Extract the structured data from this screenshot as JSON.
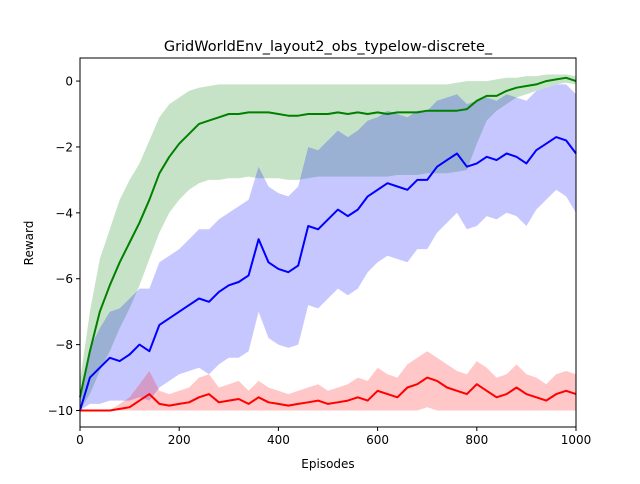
{
  "chart_data": {
    "type": "line",
    "title": "GridWorldEnv_layout2_obs_typelow-discrete_",
    "xlabel": "Episodes",
    "ylabel": "Reward",
    "xlim": [
      0,
      1000
    ],
    "ylim": [
      -10.5,
      0.7
    ],
    "x_ticks": [
      0,
      200,
      400,
      600,
      800,
      1000
    ],
    "y_ticks": [
      0,
      -2,
      -4,
      -6,
      -8,
      -10
    ],
    "x_tick_labels": [
      "0",
      "200",
      "400",
      "600",
      "800",
      "1000"
    ],
    "y_tick_labels": [
      "0",
      "−2",
      "−4",
      "−6",
      "−8",
      "−10"
    ],
    "grid": false,
    "legend": "none",
    "x": [
      0,
      20,
      40,
      60,
      80,
      100,
      120,
      140,
      160,
      180,
      200,
      220,
      240,
      260,
      280,
      300,
      320,
      340,
      360,
      380,
      400,
      420,
      440,
      460,
      480,
      500,
      520,
      540,
      560,
      580,
      600,
      620,
      640,
      660,
      680,
      700,
      720,
      740,
      760,
      780,
      800,
      820,
      840,
      860,
      880,
      900,
      920,
      940,
      960,
      980,
      1000
    ],
    "series": [
      {
        "color": "#008000",
        "values": [
          -9.6,
          -8.2,
          -7.0,
          -6.2,
          -5.5,
          -4.9,
          -4.3,
          -3.6,
          -2.8,
          -2.3,
          -1.9,
          -1.6,
          -1.3,
          -1.2,
          -1.1,
          -1.0,
          -1.0,
          -0.95,
          -0.95,
          -0.95,
          -1.0,
          -1.05,
          -1.05,
          -1.0,
          -1.0,
          -1.0,
          -0.95,
          -1.0,
          -0.95,
          -1.0,
          -0.95,
          -1.0,
          -0.95,
          -0.95,
          -0.95,
          -0.9,
          -0.9,
          -0.9,
          -0.9,
          -0.85,
          -0.6,
          -0.45,
          -0.45,
          -0.3,
          -0.2,
          -0.15,
          -0.1,
          0.0,
          0.05,
          0.1,
          0.0
        ],
        "upper": [
          -9.1,
          -7.0,
          -5.4,
          -4.5,
          -3.6,
          -3.0,
          -2.5,
          -1.8,
          -1.1,
          -0.7,
          -0.5,
          -0.3,
          -0.2,
          -0.15,
          -0.1,
          -0.1,
          -0.1,
          -0.1,
          -0.1,
          -0.1,
          -0.1,
          -0.1,
          -0.1,
          -0.1,
          -0.1,
          -0.1,
          -0.1,
          -0.1,
          -0.1,
          -0.1,
          -0.1,
          -0.1,
          -0.1,
          -0.1,
          -0.1,
          -0.1,
          -0.1,
          -0.1,
          -0.05,
          0.0,
          0.0,
          0.0,
          0.05,
          0.1,
          0.1,
          0.15,
          0.15,
          0.2,
          0.2,
          0.2,
          0.15
        ],
        "lower": [
          -10.0,
          -9.5,
          -8.8,
          -8.2,
          -7.5,
          -6.9,
          -6.2,
          -5.4,
          -4.6,
          -4.0,
          -3.6,
          -3.3,
          -3.1,
          -3.0,
          -3.0,
          -2.95,
          -2.95,
          -2.9,
          -2.95,
          -2.95,
          -2.95,
          -3.0,
          -3.0,
          -2.95,
          -2.9,
          -2.9,
          -2.9,
          -2.9,
          -2.9,
          -2.9,
          -2.9,
          -2.9,
          -2.85,
          -2.85,
          -2.85,
          -2.8,
          -2.8,
          -2.8,
          -2.75,
          -2.7,
          -1.9,
          -1.2,
          -0.9,
          -0.7,
          -0.5,
          -0.4,
          -0.3,
          -0.2,
          -0.1,
          -0.05,
          -0.1
        ]
      },
      {
        "color": "#0000ff",
        "values": [
          -10.0,
          -9.0,
          -8.7,
          -8.4,
          -8.5,
          -8.3,
          -8.0,
          -8.2,
          -7.4,
          -7.2,
          -7.0,
          -6.8,
          -6.6,
          -6.7,
          -6.4,
          -6.2,
          -6.1,
          -5.9,
          -4.8,
          -5.5,
          -5.7,
          -5.8,
          -5.6,
          -4.4,
          -4.5,
          -4.2,
          -3.9,
          -4.1,
          -3.9,
          -3.5,
          -3.3,
          -3.1,
          -3.2,
          -3.3,
          -3.0,
          -3.0,
          -2.6,
          -2.4,
          -2.2,
          -2.6,
          -2.5,
          -2.3,
          -2.4,
          -2.2,
          -2.3,
          -2.5,
          -2.1,
          -1.9,
          -1.7,
          -1.8,
          -2.2
        ],
        "upper": [
          -9.6,
          -8.1,
          -7.5,
          -7.0,
          -6.9,
          -6.6,
          -6.3,
          -6.3,
          -5.5,
          -5.3,
          -5.1,
          -4.8,
          -4.5,
          -4.5,
          -4.2,
          -4.0,
          -3.8,
          -3.6,
          -2.6,
          -3.2,
          -3.4,
          -3.5,
          -3.2,
          -2.0,
          -2.1,
          -1.8,
          -1.5,
          -1.7,
          -1.5,
          -1.2,
          -1.1,
          -0.9,
          -1.0,
          -1.1,
          -0.9,
          -0.9,
          -0.6,
          -0.5,
          -0.4,
          -0.7,
          -0.6,
          -0.5,
          -0.6,
          -0.4,
          -0.5,
          -0.6,
          -0.3,
          -0.2,
          -0.1,
          -0.1,
          -0.4
        ],
        "lower": [
          -10.0,
          -9.8,
          -9.8,
          -9.7,
          -9.7,
          -9.7,
          -9.6,
          -9.7,
          -9.3,
          -9.1,
          -8.9,
          -8.8,
          -8.7,
          -8.9,
          -8.6,
          -8.4,
          -8.4,
          -8.2,
          -7.0,
          -7.8,
          -8.0,
          -8.1,
          -8.0,
          -6.8,
          -6.9,
          -6.6,
          -6.3,
          -6.5,
          -6.3,
          -5.8,
          -5.5,
          -5.3,
          -5.4,
          -5.5,
          -5.1,
          -5.1,
          -4.6,
          -4.3,
          -4.0,
          -4.5,
          -4.4,
          -4.1,
          -4.2,
          -4.0,
          -4.1,
          -4.4,
          -3.9,
          -3.6,
          -3.3,
          -3.5,
          -4.0
        ]
      },
      {
        "color": "#ff0000",
        "values": [
          -10.0,
          -10.0,
          -10.0,
          -10.0,
          -9.95,
          -9.9,
          -9.7,
          -9.5,
          -9.8,
          -9.85,
          -9.8,
          -9.75,
          -9.6,
          -9.5,
          -9.75,
          -9.7,
          -9.65,
          -9.8,
          -9.6,
          -9.75,
          -9.8,
          -9.85,
          -9.8,
          -9.75,
          -9.7,
          -9.8,
          -9.75,
          -9.7,
          -9.6,
          -9.7,
          -9.4,
          -9.5,
          -9.6,
          -9.3,
          -9.2,
          -9.0,
          -9.1,
          -9.3,
          -9.4,
          -9.5,
          -9.2,
          -9.4,
          -9.6,
          -9.5,
          -9.3,
          -9.5,
          -9.6,
          -9.7,
          -9.5,
          -9.4,
          -9.5
        ],
        "upper": [
          -10.0,
          -10.0,
          -10.0,
          -10.0,
          -9.8,
          -9.6,
          -9.2,
          -8.8,
          -9.4,
          -9.5,
          -9.4,
          -9.3,
          -9.0,
          -8.9,
          -9.3,
          -9.2,
          -9.1,
          -9.4,
          -9.1,
          -9.3,
          -9.4,
          -9.5,
          -9.4,
          -9.3,
          -9.2,
          -9.4,
          -9.3,
          -9.2,
          -9.0,
          -9.1,
          -8.7,
          -8.9,
          -9.0,
          -8.6,
          -8.4,
          -8.2,
          -8.4,
          -8.6,
          -8.8,
          -8.9,
          -8.5,
          -8.7,
          -9.0,
          -8.9,
          -8.6,
          -8.9,
          -9.0,
          -9.2,
          -8.9,
          -8.8,
          -8.9
        ],
        "lower": [
          -10.0,
          -10.0,
          -10.0,
          -10.0,
          -10.0,
          -10.0,
          -10.0,
          -10.0,
          -10.0,
          -10.0,
          -10.0,
          -10.0,
          -10.0,
          -10.0,
          -10.0,
          -10.0,
          -10.0,
          -10.0,
          -10.0,
          -10.0,
          -10.0,
          -10.0,
          -10.0,
          -10.0,
          -10.0,
          -10.0,
          -10.0,
          -10.0,
          -10.0,
          -10.0,
          -10.0,
          -10.0,
          -10.0,
          -10.0,
          -10.0,
          -9.9,
          -10.0,
          -10.0,
          -10.0,
          -10.0,
          -10.0,
          -10.0,
          -10.0,
          -10.0,
          -10.0,
          -10.0,
          -10.0,
          -10.0,
          -10.0,
          -10.0,
          -10.0
        ]
      }
    ]
  }
}
